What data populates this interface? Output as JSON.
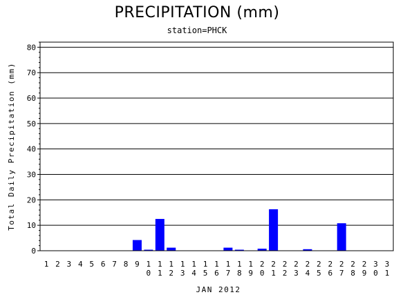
{
  "chart_data": {
    "type": "bar",
    "title": "PRECIPITATION (mm)",
    "subtitle": "station=PHCK",
    "xlabel": "JAN 2012",
    "ylabel": "Total Daily Precipitation (mm)",
    "ylim": [
      0,
      82
    ],
    "yticks": [
      0,
      10,
      20,
      30,
      40,
      50,
      60,
      70,
      80
    ],
    "grid": true,
    "bar_color": "#0000ff",
    "categories": [
      "1",
      "2",
      "3",
      "4",
      "5",
      "6",
      "7",
      "8",
      "9",
      "10",
      "11",
      "12",
      "13",
      "14",
      "15",
      "16",
      "17",
      "18",
      "19",
      "20",
      "21",
      "22",
      "23",
      "24",
      "25",
      "26",
      "27",
      "28",
      "29",
      "30",
      "31"
    ],
    "values": [
      0,
      0,
      0,
      0,
      0,
      0,
      0,
      0,
      4.2,
      0.4,
      12.5,
      1.2,
      0,
      0,
      0,
      0,
      1.2,
      0.4,
      0,
      0.8,
      16.3,
      0,
      0,
      0.6,
      0,
      0,
      10.8,
      0,
      0,
      0,
      0
    ]
  }
}
